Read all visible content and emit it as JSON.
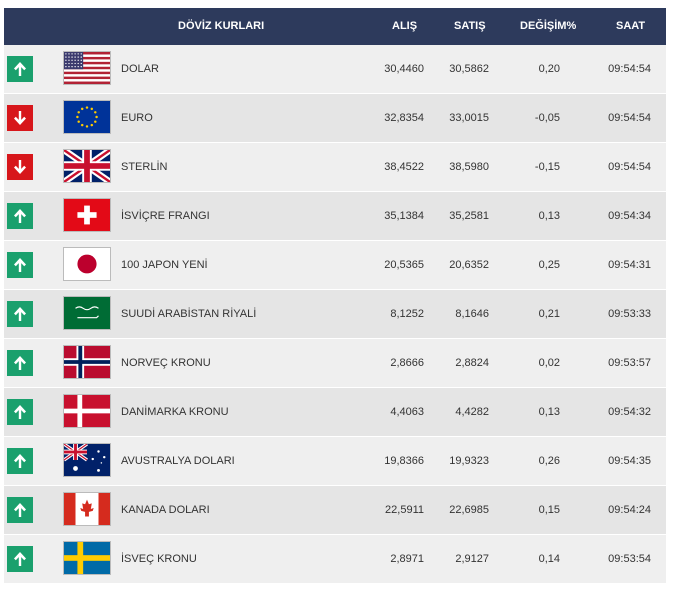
{
  "header": {
    "title": "DÖVİZ KURLARI",
    "alis": "ALIŞ",
    "satis": "SATIŞ",
    "degisim": "DEĞİŞİM%",
    "saat": "SAAT"
  },
  "colors": {
    "header_bg": "#2d3a5c",
    "up": "#1aa06d",
    "down": "#d7161b"
  },
  "rows": [
    {
      "trend": "up",
      "flag": "us-flag-icon",
      "name": "DOLAR",
      "alis": "30,4460",
      "satis": "30,5862",
      "degisim": "0,20",
      "saat": "09:54:54"
    },
    {
      "trend": "down",
      "flag": "eu-flag-icon",
      "name": "EURO",
      "alis": "32,8354",
      "satis": "33,0015",
      "degisim": "-0,05",
      "saat": "09:54:54"
    },
    {
      "trend": "down",
      "flag": "uk-flag-icon",
      "name": "STERLİN",
      "alis": "38,4522",
      "satis": "38,5980",
      "degisim": "-0,15",
      "saat": "09:54:54"
    },
    {
      "trend": "up",
      "flag": "ch-flag-icon",
      "name": "İSVİÇRE FRANGI",
      "alis": "35,1384",
      "satis": "35,2581",
      "degisim": "0,13",
      "saat": "09:54:34"
    },
    {
      "trend": "up",
      "flag": "jp-flag-icon",
      "name": "100 JAPON YENİ",
      "alis": "20,5365",
      "satis": "20,6352",
      "degisim": "0,25",
      "saat": "09:54:31"
    },
    {
      "trend": "up",
      "flag": "sa-flag-icon",
      "name": "SUUDİ ARABİSTAN RİYALİ",
      "alis": "8,1252",
      "satis": "8,1646",
      "degisim": "0,21",
      "saat": "09:53:33"
    },
    {
      "trend": "up",
      "flag": "no-flag-icon",
      "name": "NORVEÇ KRONU",
      "alis": "2,8666",
      "satis": "2,8824",
      "degisim": "0,02",
      "saat": "09:53:57"
    },
    {
      "trend": "up",
      "flag": "dk-flag-icon",
      "name": "DANİMARKA KRONU",
      "alis": "4,4063",
      "satis": "4,4282",
      "degisim": "0,13",
      "saat": "09:54:32"
    },
    {
      "trend": "up",
      "flag": "au-flag-icon",
      "name": "AVUSTRALYA DOLARI",
      "alis": "19,8366",
      "satis": "19,9323",
      "degisim": "0,26",
      "saat": "09:54:35"
    },
    {
      "trend": "up",
      "flag": "ca-flag-icon",
      "name": "KANADA DOLARI",
      "alis": "22,5911",
      "satis": "22,6985",
      "degisim": "0,15",
      "saat": "09:54:24"
    },
    {
      "trend": "up",
      "flag": "se-flag-icon",
      "name": "İSVEÇ KRONU",
      "alis": "2,8971",
      "satis": "2,9127",
      "degisim": "0,14",
      "saat": "09:53:54"
    }
  ]
}
